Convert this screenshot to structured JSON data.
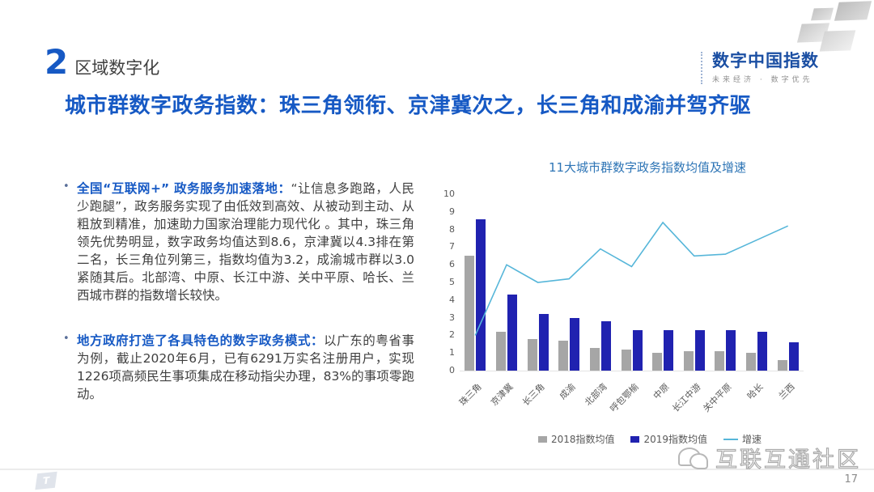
{
  "header": {
    "section_number": "2",
    "section_title": "区域数字化",
    "title": "城市群数字政务指数：珠三角领衔、京津冀次之，长三角和成渝并驾齐驱"
  },
  "logo": {
    "name": "数字中国指数",
    "tagline": "未来经济 · 数字优先"
  },
  "bullets": [
    {
      "lead": "全国“互联网+” 政务服务加速落地：",
      "body": "“让信息多跑路，人民少跑腿”，政务服务实现了由低效到高效、从被动到主动、从粗放到精准，加速助力国家治理能力现代化 。其中，珠三角领先优势明显，数字政务均值达到8.6，京津冀以4.3排在第二名，长三角位列第三，指数均值为3.2，成渝城市群以3.0紧随其后。北部湾、中原、长江中游、关中平原、哈长、兰西城市群的指数增长较快。"
    },
    {
      "lead": "地方政府打造了各具特色的数字政务模式：",
      "body": "以广东的粤省事为例，截止2020年6月，已有6291万实名注册用户，实现1226项高频民生事项集成在移动指尖办理，83%的事项零跑动。"
    }
  ],
  "chart_data": {
    "type": "bar",
    "title": "11大城市群数字政务指数均值及增速",
    "categories": [
      "珠三角",
      "京津冀",
      "长三角",
      "成渝",
      "北部湾",
      "呼包鄂榆",
      "中原",
      "长江中游",
      "关中平原",
      "哈长",
      "兰西"
    ],
    "series": [
      {
        "name": "2018指数均值",
        "kind": "bar",
        "color": "#a6a6a6",
        "values": [
          6.5,
          2.2,
          1.8,
          1.7,
          1.3,
          1.2,
          1.0,
          1.1,
          1.1,
          1.0,
          0.6
        ]
      },
      {
        "name": "2019指数均值",
        "kind": "bar",
        "color": "#2022b0",
        "values": [
          8.6,
          4.3,
          3.2,
          3.0,
          2.8,
          2.3,
          2.3,
          2.3,
          2.3,
          2.2,
          1.6
        ]
      },
      {
        "name": "增速",
        "kind": "line",
        "color": "#56b6d9",
        "values": [
          2.0,
          6.0,
          5.0,
          5.2,
          6.9,
          5.9,
          8.4,
          6.5,
          6.6,
          7.4,
          8.2
        ]
      }
    ],
    "ylim": [
      0,
      10
    ],
    "yticks": [
      0,
      1,
      2,
      3,
      4,
      5,
      6,
      7,
      8,
      9,
      10
    ],
    "legend_position": "bottom",
    "grid": false
  },
  "watermark": {
    "text": "互联互通社区"
  },
  "footer": {
    "page": "17",
    "brand_letter": "T"
  },
  "colors": {
    "accent_blue": "#1659c4",
    "logo_blue": "#1b4fa3",
    "chart_title_blue": "#2e75b6",
    "bar_2018": "#a6a6a6",
    "bar_2019": "#2022b0",
    "growth_line": "#56b6d9",
    "body_text": "#3f3f3f"
  }
}
